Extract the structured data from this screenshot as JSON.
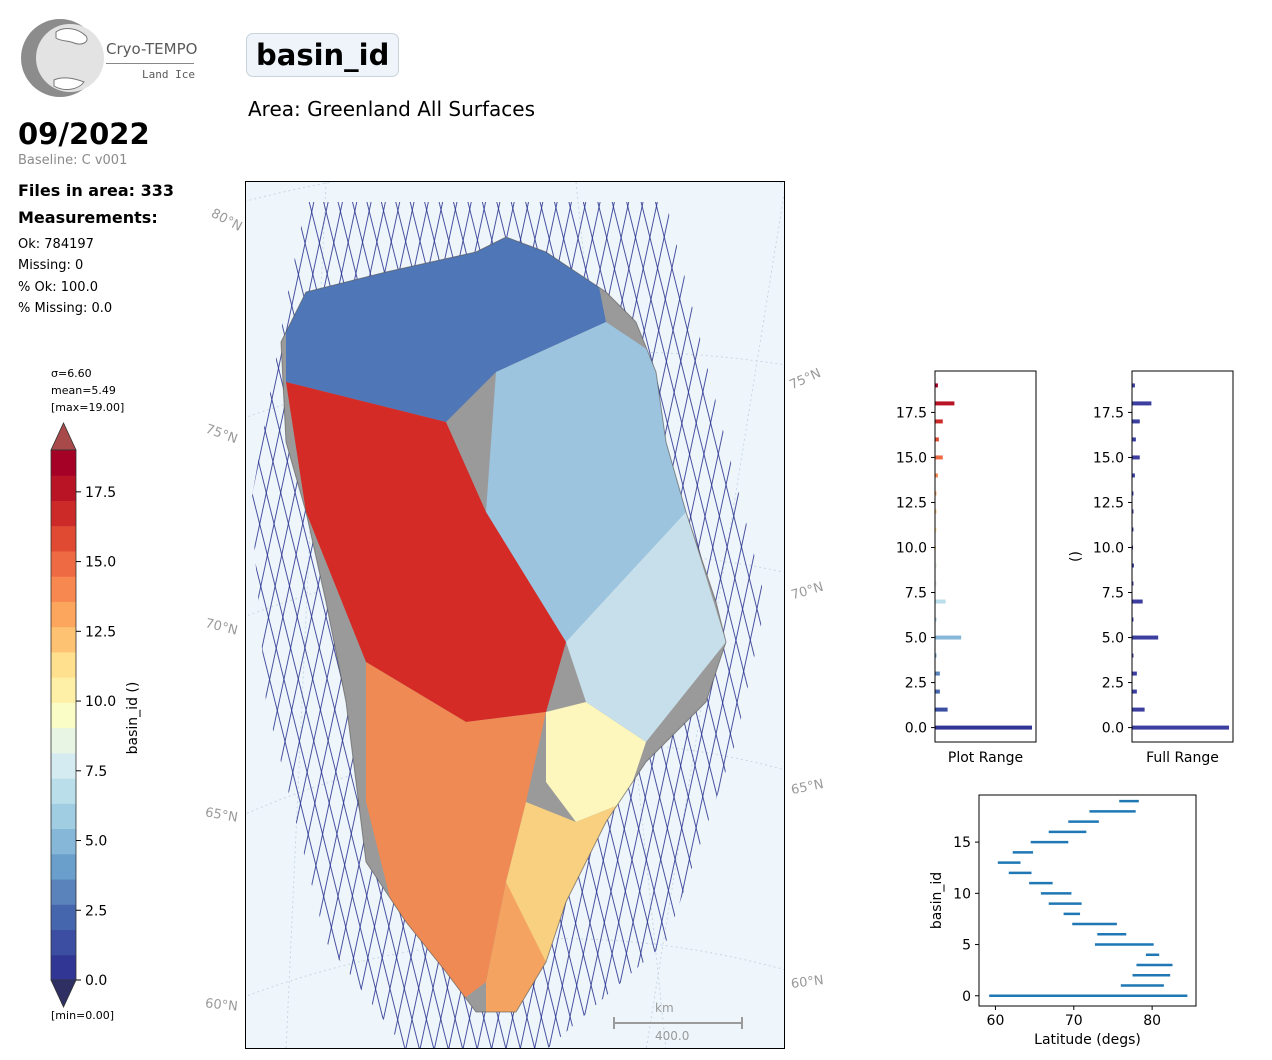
{
  "logo": {
    "name": "Cryo-TEMPO",
    "subtitle": "Land Ice"
  },
  "header": {
    "title": "basin_id",
    "area": "Area: Greenland All Surfaces"
  },
  "summary": {
    "date": "09/2022",
    "baseline": "Baseline: C v001",
    "files": "Files in area: 333",
    "measurements_heading": "Measurements:",
    "ok": "Ok: 784197",
    "missing": "Missing: 0",
    "pct_ok": "% Ok: 100.0",
    "pct_missing": "% Missing: 0.0"
  },
  "colorbar": {
    "sigma": "σ=6.60",
    "mean": "mean=5.49",
    "max": "[max=19.00]",
    "min": "[min=0.00]",
    "label": "basin_id ()",
    "ticks": [
      "0.0",
      "2.5",
      "5.0",
      "7.5",
      "10.0",
      "12.5",
      "15.0",
      "17.5"
    ],
    "colors": [
      "#313695",
      "#3b4ea2",
      "#4565ad",
      "#5a83bb",
      "#6b9fcb",
      "#86b7d8",
      "#a1cde3",
      "#bbdeeb",
      "#d4ebf1",
      "#e9f5e4",
      "#fbfdc6",
      "#fff0a7",
      "#fee08f",
      "#fdc272",
      "#fca55d",
      "#f78850",
      "#ee6a43",
      "#e04a32",
      "#cc2a28",
      "#b81426",
      "#a50026"
    ],
    "under_color": "#2f2f64",
    "over_color": "#a84a4a"
  },
  "map": {
    "lat_labels_left": [
      "80°N",
      "75°N",
      "70°N",
      "65°N",
      "60°N"
    ],
    "lat_labels_right": [
      "75°N",
      "70°N",
      "65°N",
      "60°N"
    ],
    "scalebar_unit": "km",
    "scalebar_value": "400.0"
  },
  "chart_data": [
    {
      "type": "bar",
      "orientation": "horizontal",
      "xlabel": "Plot Range",
      "ylabel": "",
      "ylim": [
        -0.8,
        19.8
      ],
      "yticks": [
        0.0,
        2.5,
        5.0,
        7.5,
        10.0,
        12.5,
        15.0,
        17.5
      ],
      "tick_labels": [
        "0.0",
        "2.5",
        "5.0",
        "7.5",
        "10.0",
        "12.5",
        "15.0",
        "17.5"
      ],
      "categories": [
        0,
        1,
        2,
        3,
        4,
        5,
        6,
        7,
        8,
        9,
        10,
        11,
        12,
        13,
        14,
        15,
        16,
        17,
        18,
        19
      ],
      "values": [
        100,
        13,
        5,
        5,
        1.5,
        27,
        1.5,
        11,
        1.5,
        2,
        1,
        1.5,
        1.5,
        1.5,
        3,
        8,
        4,
        8,
        20,
        3
      ],
      "color_scale": "colorbar"
    },
    {
      "type": "bar",
      "orientation": "horizontal",
      "xlabel": "Full Range",
      "ylabel": "()",
      "ylim": [
        -0.8,
        19.8
      ],
      "yticks": [
        0.0,
        2.5,
        5.0,
        7.5,
        10.0,
        12.5,
        15.0,
        17.5
      ],
      "tick_labels": [
        "0.0",
        "2.5",
        "5.0",
        "7.5",
        "10.0",
        "12.5",
        "15.0",
        "17.5"
      ],
      "categories": [
        0,
        1,
        2,
        3,
        4,
        5,
        6,
        7,
        8,
        9,
        10,
        11,
        12,
        13,
        14,
        15,
        16,
        17,
        18,
        19
      ],
      "values": [
        100,
        13,
        5,
        5,
        1.5,
        27,
        1.5,
        11,
        1.5,
        2,
        1,
        1.5,
        1.5,
        1.5,
        3,
        8,
        4,
        8,
        20,
        3
      ],
      "color": "#3c3fa0"
    },
    {
      "type": "range",
      "xlabel": "Latitude (degs)",
      "ylabel": "basin_id",
      "xlim": [
        57.9,
        85.6
      ],
      "ylim": [
        -1,
        19.6
      ],
      "xticks": [
        60,
        70,
        80
      ],
      "yticks": [
        0,
        5,
        10,
        15
      ],
      "color": "#1f77b4",
      "ranges": [
        {
          "id": 0,
          "min": 59.2,
          "max": 84.5
        },
        {
          "id": 1,
          "min": 76.0,
          "max": 81.5
        },
        {
          "id": 2,
          "min": 77.5,
          "max": 82.3
        },
        {
          "id": 3,
          "min": 78.0,
          "max": 82.6
        },
        {
          "id": 4,
          "min": 79.2,
          "max": 80.9
        },
        {
          "id": 5,
          "min": 72.7,
          "max": 80.2
        },
        {
          "id": 6,
          "min": 73.0,
          "max": 76.7
        },
        {
          "id": 7,
          "min": 69.8,
          "max": 75.5
        },
        {
          "id": 8,
          "min": 68.7,
          "max": 70.8
        },
        {
          "id": 9,
          "min": 66.8,
          "max": 71.0
        },
        {
          "id": 10,
          "min": 65.8,
          "max": 69.7
        },
        {
          "id": 11,
          "min": 64.3,
          "max": 67.3
        },
        {
          "id": 12,
          "min": 61.7,
          "max": 64.6
        },
        {
          "id": 13,
          "min": 60.3,
          "max": 63.2
        },
        {
          "id": 14,
          "min": 62.2,
          "max": 64.8
        },
        {
          "id": 15,
          "min": 64.5,
          "max": 69.3
        },
        {
          "id": 16,
          "min": 66.8,
          "max": 71.6
        },
        {
          "id": 17,
          "min": 69.3,
          "max": 73.2
        },
        {
          "id": 18,
          "min": 72.0,
          "max": 77.9
        },
        {
          "id": 19,
          "min": 75.8,
          "max": 78.3
        }
      ]
    }
  ]
}
